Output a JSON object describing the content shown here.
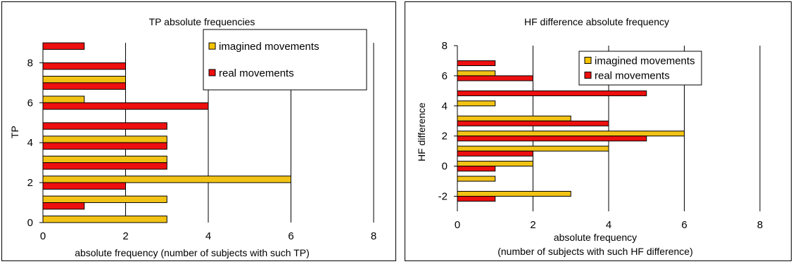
{
  "colors": {
    "imagined": "#F2C314",
    "real": "#EE0F0F",
    "legend_imagined": "#F7C400",
    "grid": "#000000"
  },
  "chart_data": [
    {
      "type": "bar",
      "orientation": "horizontal",
      "title": "TP absolute frequencies",
      "xlabel": "absolute frequency (number of subjects with such TP)",
      "xlabel2": "",
      "ylabel": "TP",
      "xlim": [
        0,
        8
      ],
      "ylim": [
        0,
        9
      ],
      "xticks": [
        "0",
        "2",
        "4",
        "6",
        "8"
      ],
      "yticks": [
        "0",
        "2",
        "4",
        "6",
        "8"
      ],
      "ytick_values": [
        0,
        2,
        4,
        6,
        8
      ],
      "categories": [
        0,
        1,
        2,
        3,
        4,
        5,
        6,
        7,
        8,
        9
      ],
      "series": [
        {
          "name": "imagined movements",
          "key": "imagined",
          "values": [
            3,
            3,
            6,
            3,
            3,
            0,
            1,
            2,
            0,
            0
          ]
        },
        {
          "name": "real movements",
          "key": "real",
          "values": [
            0,
            1,
            2,
            3,
            3,
            3,
            4,
            2,
            2,
            1
          ]
        }
      ],
      "legend": "top-right",
      "grid": "vertical"
    },
    {
      "type": "bar",
      "orientation": "horizontal",
      "title": "HF difference absolute frequency",
      "xlabel": "absolute frequency",
      "xlabel2": "(number of subjects with such HF difference)",
      "ylabel": "HF difference",
      "xlim": [
        0,
        8
      ],
      "ylim": [
        -3,
        8
      ],
      "xticks": [
        "0",
        "2",
        "4",
        "6",
        "8"
      ],
      "yticks": [
        "-2",
        "0",
        "2",
        "4",
        "6",
        "8"
      ],
      "ytick_values": [
        -2,
        0,
        2,
        4,
        6,
        8
      ],
      "categories": [
        -2,
        -1,
        0,
        1,
        2,
        3,
        4,
        5,
        6,
        7
      ],
      "series": [
        {
          "name": "imagined movements",
          "key": "imagined",
          "values": [
            3,
            1,
            2,
            4,
            6,
            3,
            1,
            0,
            1,
            0
          ]
        },
        {
          "name": "real movements",
          "key": "real",
          "values": [
            1,
            0,
            1,
            2,
            5,
            4,
            0,
            5,
            2,
            1
          ]
        }
      ],
      "legend": "top-right",
      "grid": "vertical"
    }
  ]
}
